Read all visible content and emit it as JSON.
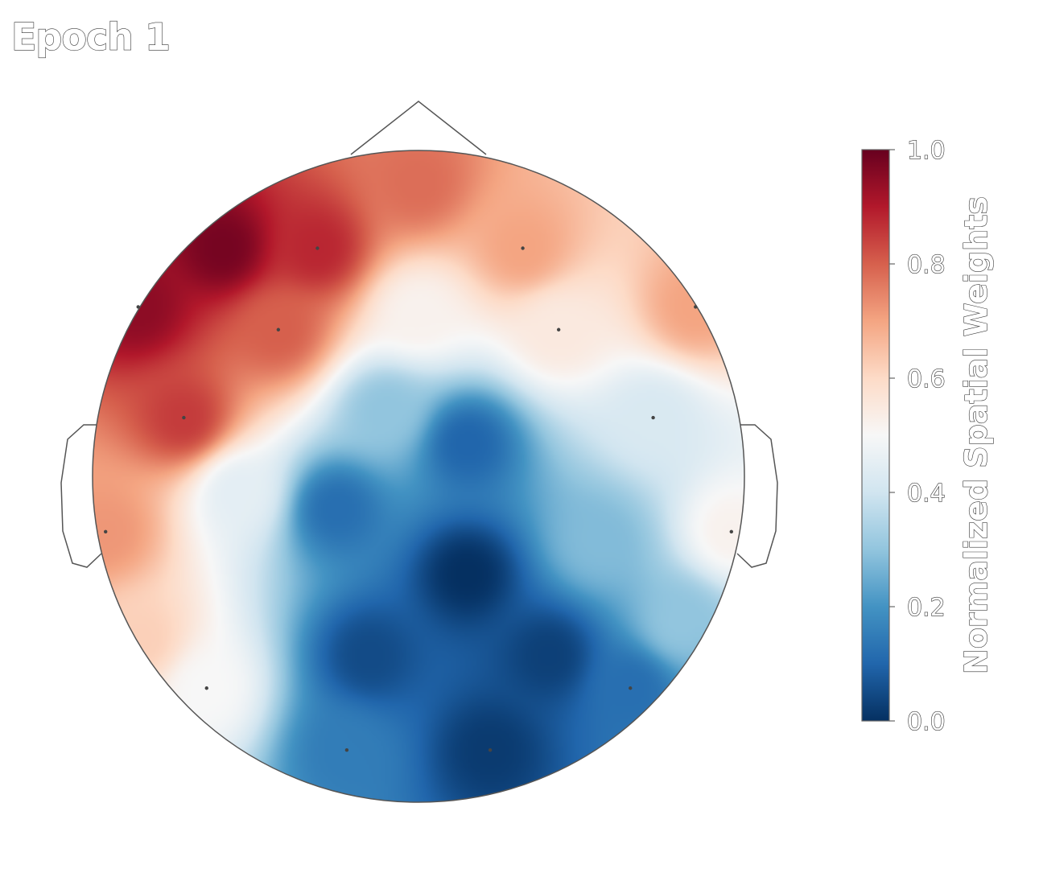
{
  "title": "Epoch 1",
  "chart_data": {
    "type": "heatmap",
    "subtype": "eeg-topomap",
    "title": "Epoch 1",
    "colormap": "RdBu_r",
    "vmin": 0.0,
    "vmax": 1.0,
    "colorbar": {
      "label": "Normalized Spatial Weights",
      "ticks": [
        0.0,
        0.2,
        0.4,
        0.6,
        0.8,
        1.0
      ],
      "tick_labels": [
        "0.0",
        "0.2",
        "0.4",
        "0.6",
        "0.8",
        "1.0"
      ],
      "position": "right"
    },
    "sensors": [
      {
        "x": -0.31,
        "y": 0.7,
        "value": 0.88
      },
      {
        "x": 0.32,
        "y": 0.7,
        "value": 0.7
      },
      {
        "x": -0.86,
        "y": 0.52,
        "value": 0.95
      },
      {
        "x": 0.85,
        "y": 0.52,
        "value": 0.7
      },
      {
        "x": -0.43,
        "y": 0.45,
        "value": 0.8
      },
      {
        "x": 0.43,
        "y": 0.45,
        "value": 0.55
      },
      {
        "x": -0.72,
        "y": 0.18,
        "value": 0.85
      },
      {
        "x": 0.72,
        "y": 0.18,
        "value": 0.42
      },
      {
        "x": -0.96,
        "y": -0.17,
        "value": 0.72
      },
      {
        "x": 0.96,
        "y": -0.17,
        "value": 0.52
      },
      {
        "x": -0.65,
        "y": -0.65,
        "value": 0.5
      },
      {
        "x": 0.65,
        "y": -0.65,
        "value": 0.12
      },
      {
        "x": -0.22,
        "y": -0.84,
        "value": 0.15
      },
      {
        "x": 0.22,
        "y": -0.84,
        "value": 0.02
      },
      {
        "x": -0.1,
        "y": 0.2,
        "value": 0.3
      },
      {
        "x": 0.15,
        "y": 0.1,
        "value": 0.1
      },
      {
        "x": 0.15,
        "y": -0.3,
        "value": 0.0
      },
      {
        "x": -0.25,
        "y": -0.1,
        "value": 0.12
      },
      {
        "x": -0.55,
        "y": -0.05,
        "value": 0.45
      },
      {
        "x": 0.55,
        "y": -0.2,
        "value": 0.28
      },
      {
        "x": -0.6,
        "y": 0.7,
        "value": 0.98
      },
      {
        "x": 0.0,
        "y": 0.9,
        "value": 0.78
      },
      {
        "x": 0.0,
        "y": 0.5,
        "value": 0.52
      },
      {
        "x": -0.15,
        "y": -0.55,
        "value": 0.05
      },
      {
        "x": 0.4,
        "y": -0.55,
        "value": 0.03
      },
      {
        "x": -0.85,
        "y": -0.5,
        "value": 0.62
      },
      {
        "x": 0.8,
        "y": -0.45,
        "value": 0.3
      }
    ]
  }
}
